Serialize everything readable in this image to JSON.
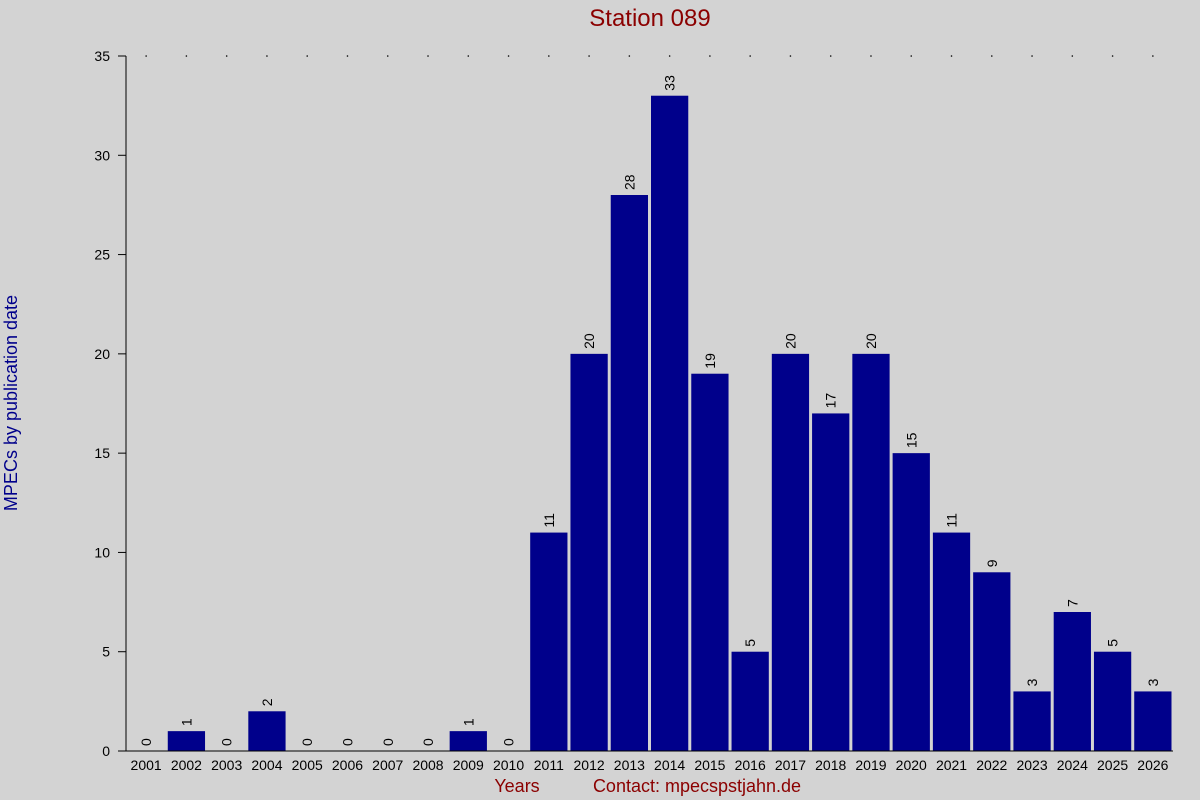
{
  "colors": {
    "background": "#d3d3d3",
    "bar": "#00008b",
    "title": "#8b0000",
    "ylabel": "#00008b",
    "xlabel": "#8b0000",
    "axis": "#000000",
    "text": "#000000"
  },
  "chart_data": {
    "type": "bar",
    "title": "Station 089",
    "xlabel": "Years",
    "ylabel": "MPECs by publication date",
    "contact": "Contact: mpecspstjahn.de",
    "categories": [
      "2001",
      "2002",
      "2003",
      "2004",
      "2005",
      "2006",
      "2007",
      "2008",
      "2009",
      "2010",
      "2011",
      "2012",
      "2013",
      "2014",
      "2015",
      "2016",
      "2017",
      "2018",
      "2019",
      "2020",
      "2021",
      "2022",
      "2023",
      "2024",
      "2025",
      "2026"
    ],
    "values": [
      0,
      1,
      0,
      2,
      0,
      0,
      0,
      0,
      1,
      0,
      11,
      20,
      28,
      33,
      19,
      5,
      20,
      17,
      20,
      15,
      11,
      9,
      3,
      7,
      5,
      3
    ],
    "ylim": [
      0,
      35
    ],
    "yticks": [
      0,
      5,
      10,
      15,
      20,
      25,
      30,
      35
    ],
    "data_labels": true,
    "grid": "dotted-top"
  }
}
